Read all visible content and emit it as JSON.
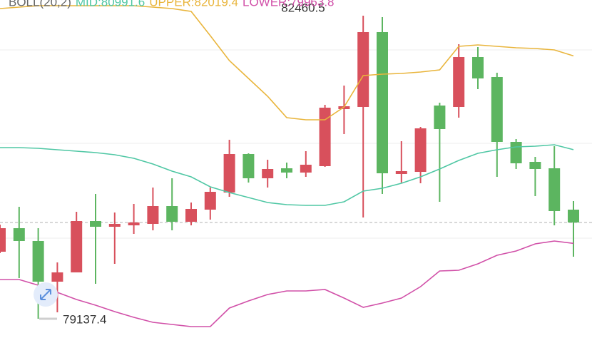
{
  "chart_data": {
    "type": "candlestick",
    "indicator": "BOLL(20,2)",
    "ylim": [
      78926.3,
      82632.5
    ],
    "up_color": "#d8505c",
    "down_color": "#5cb560",
    "ohlc": [
      [
        79872.4,
        80169.5,
        79856.8,
        80130.4
      ],
      [
        80130.4,
        80365.0,
        79583.1,
        79989.7
      ],
      [
        79989.7,
        80130.4,
        79137.4,
        79544.0
      ],
      [
        79544.0,
        79755.1,
        79207.8,
        79645.7
      ],
      [
        79645.7,
        80310.3,
        79645.7,
        80208.6
      ],
      [
        80208.6,
        80505.7,
        79520.6,
        80146.1
      ],
      [
        80146.1,
        80302.5,
        79739.5,
        80177.4
      ],
      [
        80161.7,
        80396.3,
        80067.9,
        80193.0
      ],
      [
        80177.4,
        80576.1,
        80107.0,
        80372.8
      ],
      [
        80372.8,
        80677.8,
        80107.0,
        80200.8
      ],
      [
        80200.8,
        80411.9,
        80161.7,
        80341.5
      ],
      [
        80333.7,
        80576.1,
        80224.3,
        80529.2
      ],
      [
        80521.4,
        81100.0,
        80474.5,
        80943.6
      ],
      [
        80943.6,
        80951.4,
        80630.9,
        80677.8
      ],
      [
        80677.8,
        80881.1,
        80576.1,
        80779.4
      ],
      [
        80787.2,
        80849.8,
        80677.8,
        80740.3
      ],
      [
        80740.3,
        80974.9,
        80693.4,
        80826.3
      ],
      [
        80810.7,
        81483.1,
        80802.9,
        81451.8
      ],
      [
        81436.2,
        81694.2,
        81162.5,
        81467.5
      ],
      [
        81459.7,
        82460.5,
        80247.7,
        82280.7
      ],
      [
        82280.7,
        82444.9,
        80505.7,
        80732.5
      ],
      [
        80724.7,
        81084.4,
        80630.9,
        80756.0
      ],
      [
        80748.1,
        81240.7,
        80623.0,
        81225.1
      ],
      [
        81475.3,
        81506.6,
        80419.7,
        81217.3
      ],
      [
        81459.7,
        82147.7,
        81342.4,
        82007.0
      ],
      [
        82007.0,
        82116.5,
        81655.1,
        81772.4
      ],
      [
        81788.1,
        81835.0,
        80693.4,
        81076.5
      ],
      [
        81076.5,
        81107.8,
        80779.4,
        80842.0
      ],
      [
        80857.6,
        80912.3,
        80482.3,
        80779.4
      ],
      [
        80787.2,
        81029.6,
        80161.7,
        80318.1
      ],
      [
        80333.7,
        80427.6,
        79817.7,
        80193.0
      ]
    ],
    "series": [
      {
        "label": "MID:80991.6",
        "color": "#4fc7a4",
        "values": [
          81014.0,
          81014.0,
          81006.2,
          80990.5,
          80974.9,
          80959.3,
          80935.8,
          80896.7,
          80834.1,
          80756.0,
          80693.4,
          80583.9,
          80521.4,
          80466.7,
          80411.9,
          80388.5,
          80380.6,
          80380.6,
          80419.7,
          80537.0,
          80568.3,
          80623.0,
          80693.4,
          80779.4,
          80873.2,
          80951.4,
          80990.5,
          81021.8,
          81029.6,
          81045.3,
          80991.6
        ]
      },
      {
        "label": "UPPER:82019.4",
        "color": "#e9b53c",
        "values": [
          82538.7,
          82554.3,
          82570.0,
          82570.0,
          82570.0,
          82570.0,
          82570.0,
          82570.0,
          82554.3,
          82538.7,
          82507.4,
          82241.6,
          81967.9,
          81772.4,
          81577.0,
          81342.4,
          81318.9,
          81318.9,
          81459.7,
          81803.7,
          81819.3,
          81827.2,
          81842.8,
          81866.3,
          82124.3,
          82139.9,
          82124.3,
          82108.6,
          82100.8,
          82085.2,
          82019.4
        ]
      },
      {
        "label": "LOWER:79963.8",
        "color": "#d150a8",
        "values": [
          79567.5,
          79567.5,
          79504.9,
          79426.7,
          79348.5,
          79286.0,
          79215.6,
          79153.1,
          79098.3,
          79074.9,
          79051.4,
          79051.4,
          79254.7,
          79332.9,
          79403.3,
          79442.4,
          79442.4,
          79458.0,
          79364.2,
          79262.5,
          79309.4,
          79364.2,
          79489.3,
          79661.3,
          79669.1,
          79739.5,
          79833.3,
          79880.2,
          79958.4,
          79989.7,
          79963.8
        ]
      }
    ]
  }
}
